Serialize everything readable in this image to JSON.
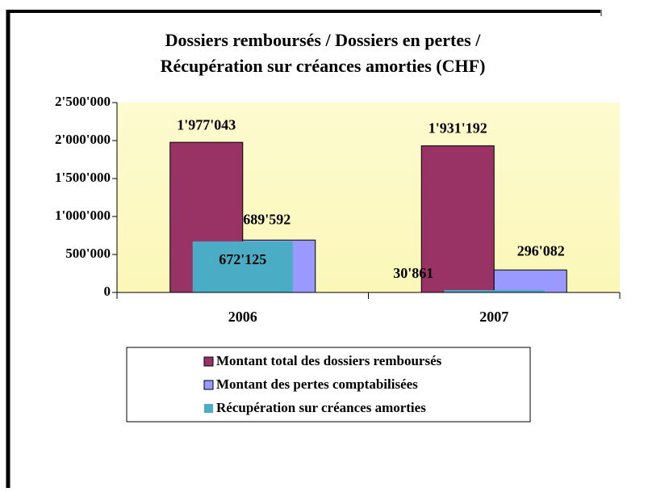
{
  "chart_data": {
    "type": "bar",
    "title": [
      "Dossiers remboursés / Dossiers en pertes /",
      "Récupération sur créances amorties (CHF)"
    ],
    "categories": [
      "2006",
      "2007"
    ],
    "series": [
      {
        "name": "Montant total des dossiers remboursés",
        "color": "#993366",
        "values": [
          1977043,
          1931192
        ],
        "value_labels": [
          "1'977'043",
          "1'931'192"
        ]
      },
      {
        "name": "Montant des pertes comptabilisées",
        "color": "#9999ff",
        "values": [
          689592,
          296082
        ],
        "value_labels": [
          "689'592",
          "296'082"
        ]
      },
      {
        "name": "Récupération sur créances amorties",
        "color": "#4bacc6",
        "values": [
          672125,
          30861
        ],
        "value_labels": [
          "672'125",
          "30'861"
        ]
      }
    ],
    "ylim": [
      0,
      2500000
    ],
    "yticks": [
      0,
      {
        "value": 500000,
        "label": "500'000"
      },
      {
        "value": 1000000,
        "label": "1'000'000"
      },
      {
        "value": 1500000,
        "label": "1'500'000"
      },
      {
        "value": 2000000,
        "label": "2'000'000"
      },
      {
        "value": 2500000,
        "label": "2'500'000"
      }
    ],
    "legend": "bottom"
  }
}
